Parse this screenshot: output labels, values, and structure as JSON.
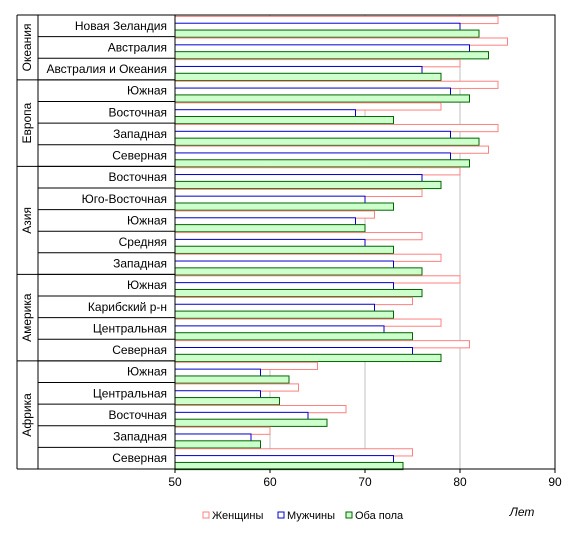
{
  "chart_data": {
    "type": "bar",
    "orientation": "horizontal",
    "title": "",
    "xlabel": "Лет",
    "ylabel": "",
    "xlim": [
      50,
      90
    ],
    "xticks": [
      50,
      60,
      70,
      80,
      90
    ],
    "grid": "vertical",
    "legend_position": "bottom",
    "groups": [
      {
        "name": "Океания",
        "size": 3
      },
      {
        "name": "Европа",
        "size": 4
      },
      {
        "name": "Азия",
        "size": 5
      },
      {
        "name": "Америка",
        "size": 4
      },
      {
        "name": "Африка",
        "size": 5
      }
    ],
    "categories": [
      "Новая Зеландия",
      "Австралия",
      "Австралия и Океания",
      "Южная",
      "Восточная",
      "Западная",
      "Северная",
      "Восточная",
      "Юго-Восточная",
      "Южная",
      "Средняя",
      "Западная",
      "Южная",
      "Карибский р-н",
      "Центральная",
      "Северная",
      "Южная",
      "Центральная",
      "Восточная",
      "Западная",
      "Северная"
    ],
    "series": [
      {
        "name": "Женщины",
        "color": "#ff8080",
        "fill": "#ffffff",
        "values": [
          84,
          85,
          80,
          84,
          78,
          84,
          83,
          80,
          76,
          71,
          76,
          78,
          80,
          75,
          78,
          81,
          65,
          63,
          68,
          60,
          75
        ]
      },
      {
        "name": "Мужчины",
        "color": "#0000cc",
        "fill": "#ffffff",
        "values": [
          80,
          81,
          76,
          79,
          69,
          79,
          79,
          76,
          70,
          69,
          70,
          73,
          73,
          71,
          72,
          75,
          59,
          59,
          64,
          58,
          73
        ]
      },
      {
        "name": "Оба пола",
        "color": "#006600",
        "fill": "#ccffcc",
        "values": [
          82,
          83,
          78,
          81,
          73,
          82,
          81,
          78,
          73,
          70,
          73,
          76,
          76,
          73,
          75,
          78,
          62,
          61,
          66,
          59,
          74
        ]
      }
    ]
  }
}
